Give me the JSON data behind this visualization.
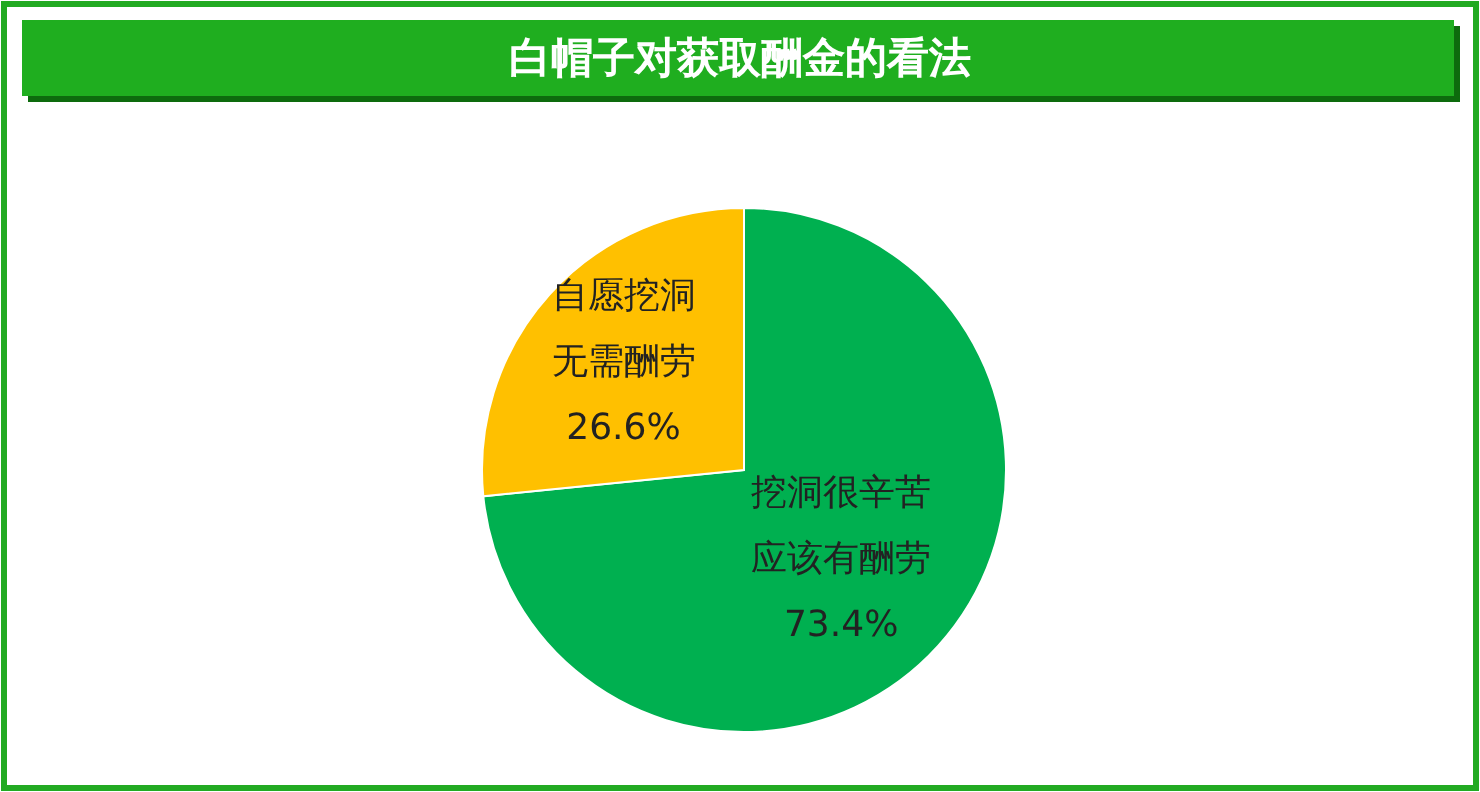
{
  "chart_data": {
    "type": "pie",
    "title": "白帽子对获取酬金的看法",
    "categories": [
      "挖洞很辛苦应该有酬劳",
      "自愿挖洞无需酬劳"
    ],
    "values": [
      73.4,
      26.6
    ],
    "colors": [
      "#00b050",
      "#ffc000"
    ],
    "value_labels": [
      "73.4%",
      "26.6%"
    ]
  }
}
